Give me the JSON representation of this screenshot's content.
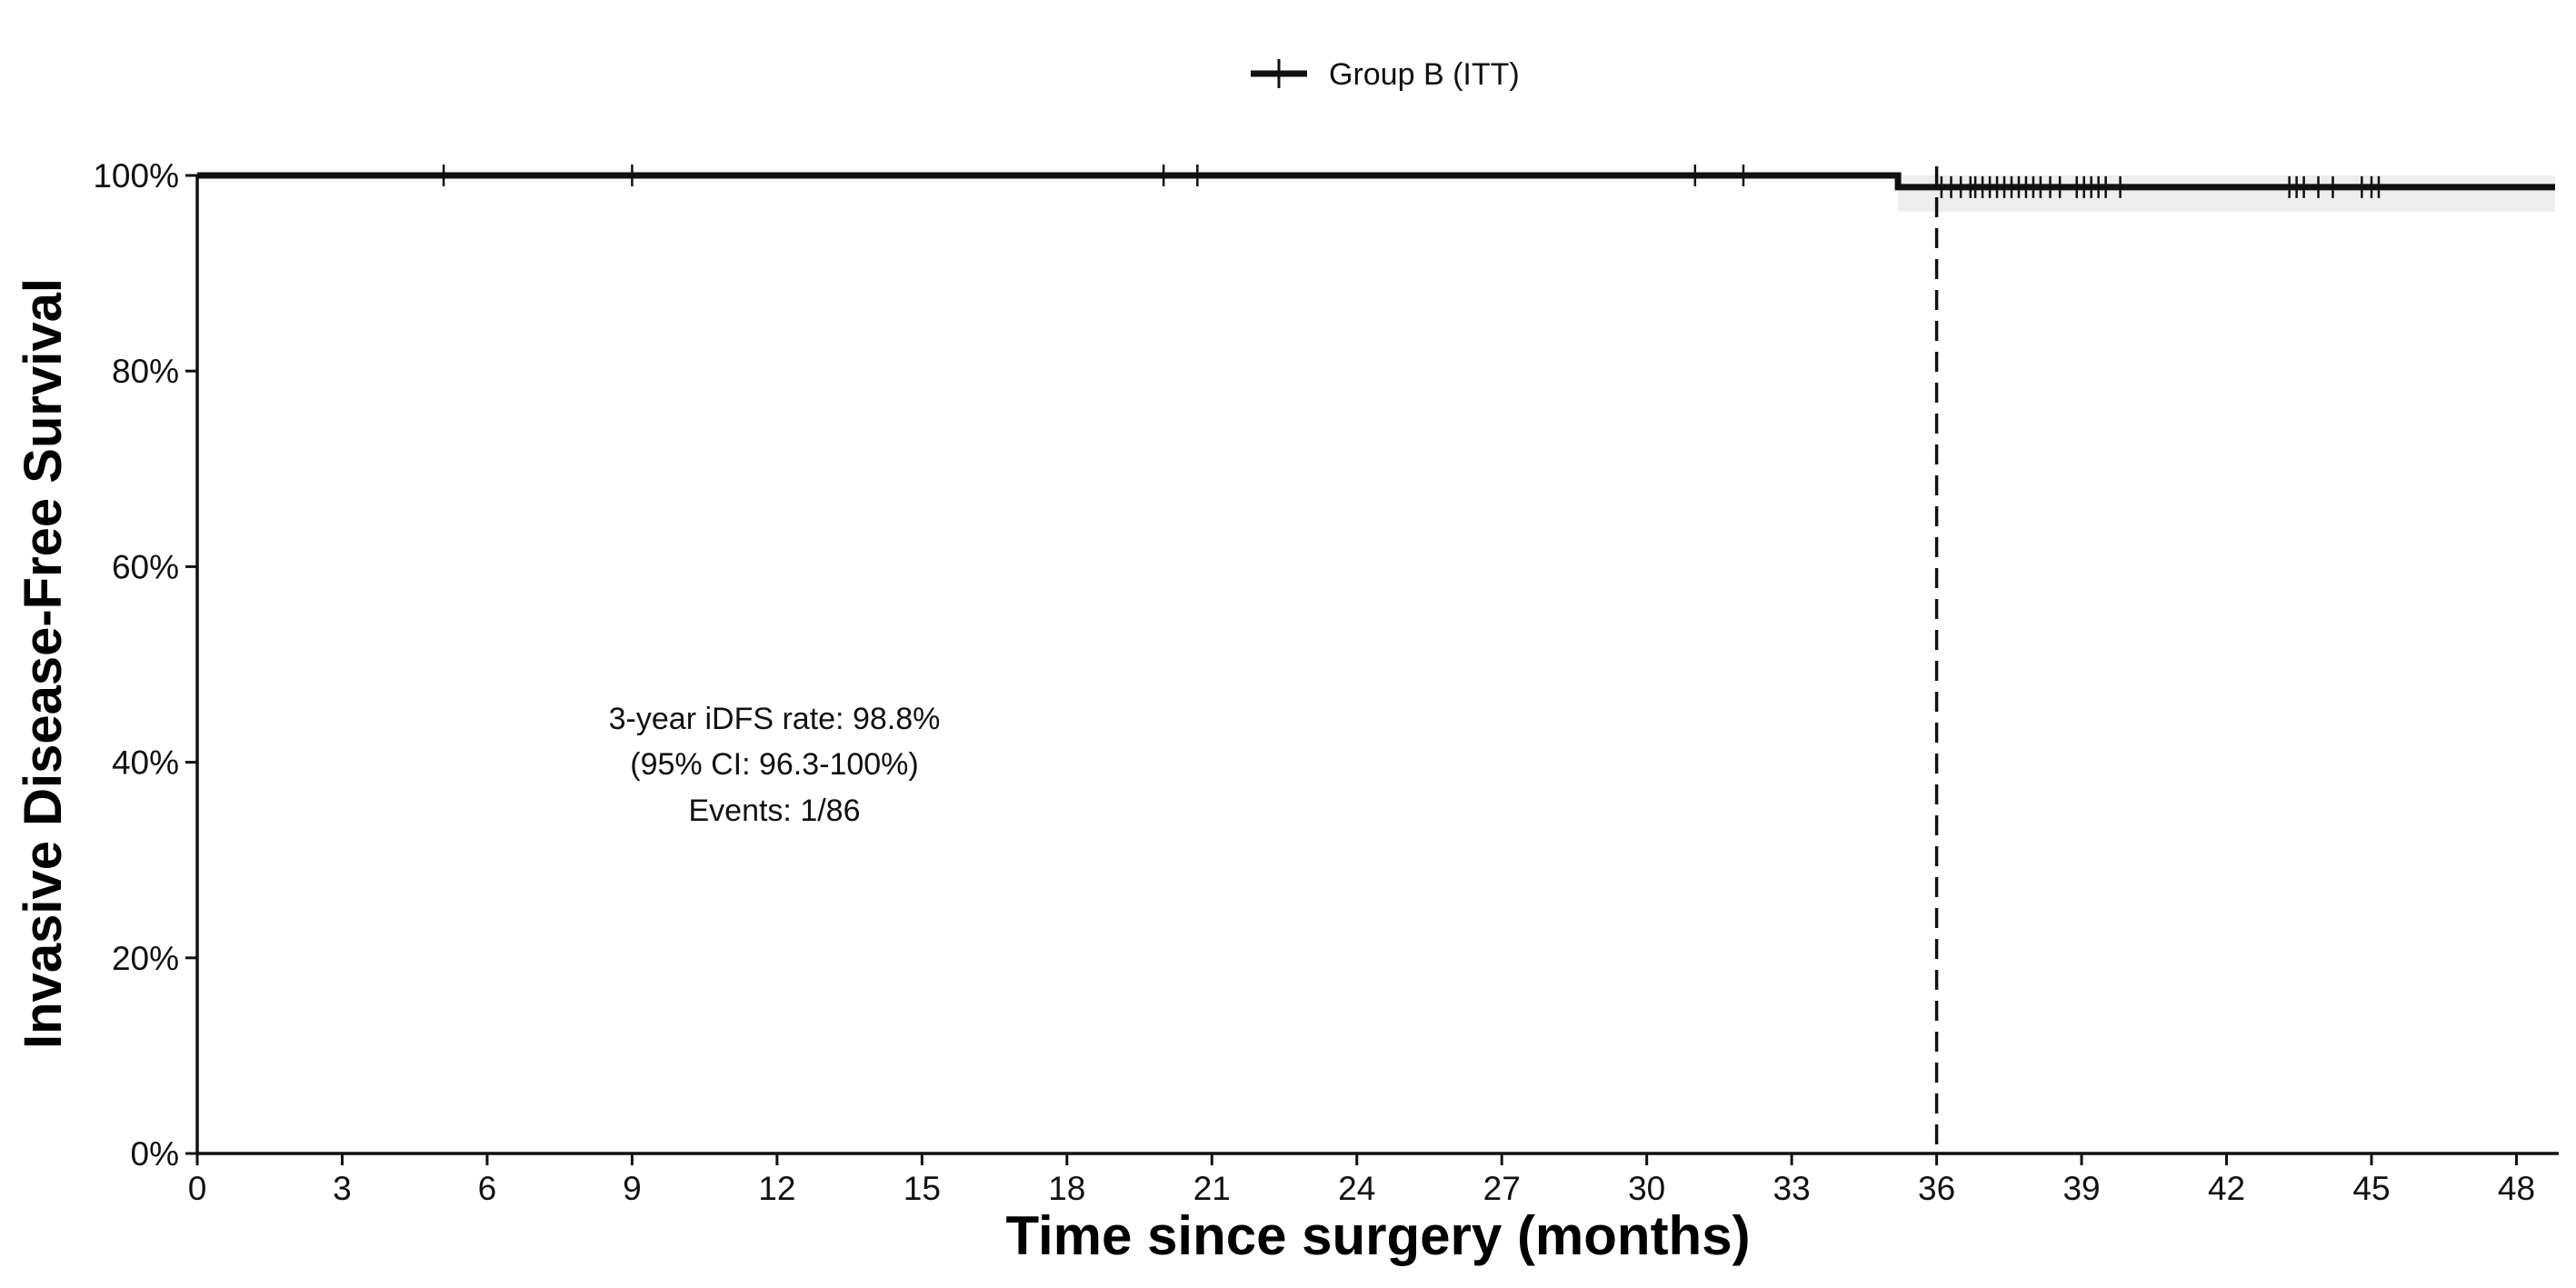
{
  "chart_data": {
    "type": "line",
    "subtype": "kaplan-meier",
    "title": "",
    "xlabel": "Time since surgery (months)",
    "ylabel": "Invasive Disease-Free Survival",
    "xlim": [
      0,
      48.8
    ],
    "ylim": [
      0,
      100
    ],
    "x_ticks": [
      0,
      3,
      6,
      9,
      12,
      15,
      18,
      21,
      24,
      27,
      30,
      33,
      36,
      39,
      42,
      45,
      48
    ],
    "y_ticks": [
      0,
      20,
      40,
      60,
      80,
      100
    ],
    "y_tick_suffix": "%",
    "grid": false,
    "legend_position": "top-center",
    "colors": {
      "line": "#111111",
      "ci_band": "#eeeeee",
      "reference": "#111111"
    },
    "series": [
      {
        "name": "Group B (ITT)",
        "steps": [
          {
            "x": 0,
            "y": 100
          },
          {
            "x": 35.2,
            "y": 98.8
          }
        ],
        "x_end": 48.8,
        "ci_band": {
          "x_start": 35.2,
          "x_end": 48.8,
          "lower": 96.3,
          "upper": 100
        },
        "censor_times": [
          5.1,
          9.0,
          20.0,
          20.7,
          31.0,
          32.0,
          36.1,
          36.3,
          36.5,
          36.7,
          36.8,
          36.95,
          37.1,
          37.25,
          37.4,
          37.55,
          37.7,
          37.85,
          38.0,
          38.15,
          38.35,
          38.55,
          38.9,
          39.05,
          39.2,
          39.35,
          39.5,
          39.8,
          43.3,
          43.45,
          43.6,
          43.9,
          44.2,
          44.8,
          45.0,
          45.15
        ]
      }
    ],
    "reference_line": {
      "x": 36,
      "style": "dashed"
    },
    "annotation": {
      "lines": [
        "3-year iDFS rate: 98.8%",
        "(95% CI: 96.3-100%)",
        "Events: 1/86"
      ],
      "x": 12,
      "y": 40
    }
  }
}
